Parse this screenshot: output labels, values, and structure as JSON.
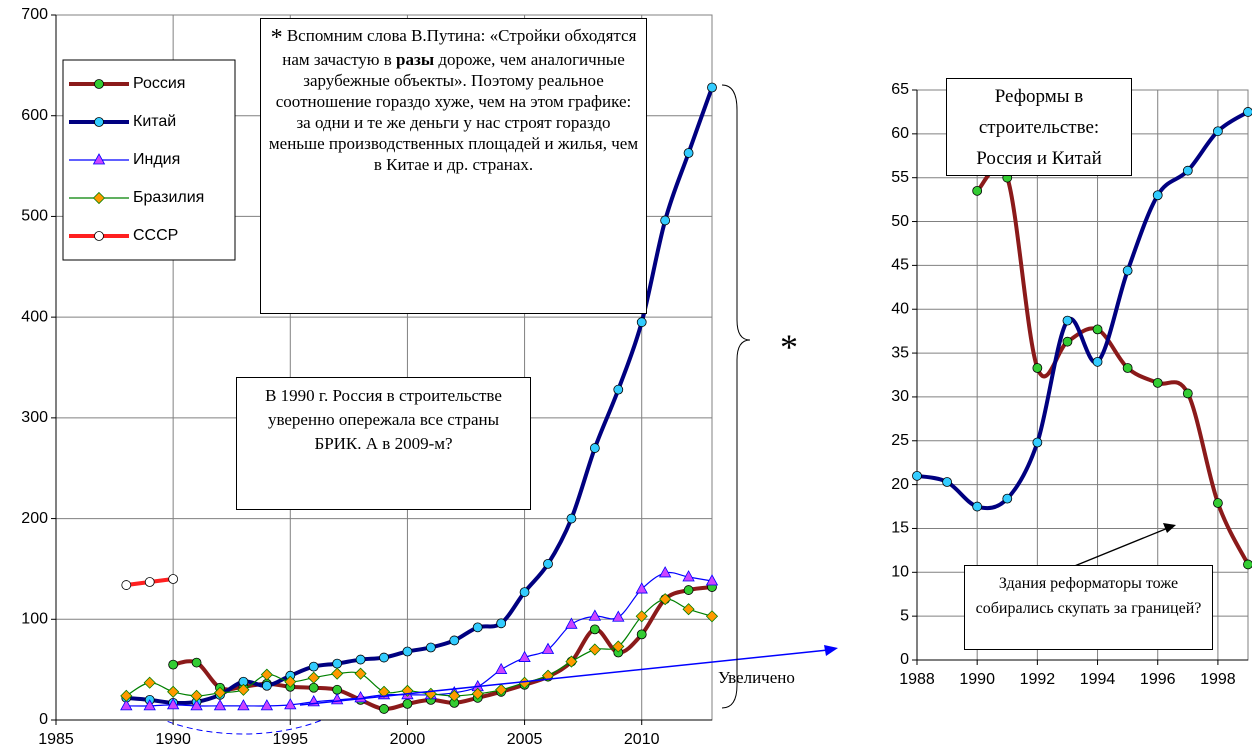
{
  "chart_data": [
    {
      "type": "line",
      "x": [
        1988,
        1989,
        1990,
        1991,
        1992,
        1993,
        1994,
        1995,
        1996,
        1997,
        1998,
        1999,
        2000,
        2001,
        2002,
        2003,
        2004,
        2005,
        2006,
        2007,
        2008,
        2009,
        2010,
        2011,
        2012,
        2013
      ],
      "series": [
        {
          "name": "Россия",
          "color": "#8b1a1a",
          "marker": "circle",
          "marker_color": "#33cc33",
          "width": 4,
          "values": [
            null,
            null,
            55,
            57,
            32,
            33,
            36,
            33,
            32,
            30,
            20,
            11,
            16,
            20,
            17,
            22,
            28,
            35,
            43,
            58,
            90,
            67,
            85,
            120,
            129,
            132
          ]
        },
        {
          "name": "Китай",
          "color": "#000080",
          "marker": "circle",
          "marker_color": "#33ccff",
          "width": 4,
          "values": [
            22,
            20,
            17,
            18,
            25,
            38,
            34,
            44,
            53,
            56,
            60,
            62,
            68,
            72,
            79,
            92,
            96,
            127,
            155,
            200,
            270,
            328,
            395,
            496,
            563,
            628
          ]
        },
        {
          "name": "Индия",
          "color": "#0000ff",
          "marker": "triangle",
          "marker_color": "#cc44ff",
          "width": 1.2,
          "values": [
            14,
            14,
            15,
            14,
            14,
            14,
            14,
            15,
            18,
            20,
            22,
            25,
            25,
            25,
            27,
            33,
            50,
            62,
            70,
            95,
            103,
            102,
            130,
            146,
            142,
            138
          ]
        },
        {
          "name": "Бразилия",
          "color": "#008000",
          "marker": "diamond",
          "marker_color": "#ff9900",
          "width": 1.2,
          "values": [
            24,
            37,
            28,
            24,
            27,
            30,
            45,
            38,
            42,
            46,
            46,
            28,
            29,
            26,
            24,
            26,
            30,
            37,
            44,
            58,
            70,
            73,
            103,
            120,
            110,
            103
          ]
        },
        {
          "name": "СССР",
          "color": "#ff2020",
          "marker": "circle",
          "marker_color": "#ffffff",
          "width": 4,
          "values": [
            134,
            137,
            140,
            null,
            null,
            null,
            null,
            null,
            null,
            null,
            null,
            null,
            null,
            null,
            null,
            null,
            null,
            null,
            null,
            null,
            null,
            null,
            null,
            null,
            null,
            null
          ]
        }
      ],
      "xlim": [
        1985,
        2013
      ],
      "xticks": [
        1985,
        1990,
        1995,
        2000,
        2005,
        2010
      ],
      "ylim": [
        0,
        700
      ],
      "yticks": [
        0,
        100,
        200,
        300,
        400,
        500,
        600,
        700
      ],
      "grid": true,
      "legend": "upper left",
      "annotations": {
        "quote": {
          "star": "*",
          "parts": [
            "Вспомним слова В.Путина: «Стройки обходятся нам зачастую в ",
            "разы",
            " дороже, чем аналогичные зарубежные объекты». Поэтому реальное соотношение гораздо хуже, чем на этом графике:  за одни и те же деньги у нас строят гораздо меньше производственных площадей и жилья, чем в Китае и др. странах."
          ]
        },
        "note": "В 1990 г.  Россия в строительстве  уверенно опережала все страны БРИК. А в 2009-м?",
        "zoom": "Увеличено",
        "brace_star": "*"
      }
    },
    {
      "type": "line",
      "title": "Реформы в строительстве: Россия и Китай",
      "x": [
        1988,
        1989,
        1990,
        1991,
        1992,
        1993,
        1994,
        1995,
        1996,
        1997,
        1998,
        1999
      ],
      "series": [
        {
          "color": "#8b1a1a",
          "marker": "circle",
          "marker_color": "#33cc33",
          "width": 4,
          "values": [
            null,
            null,
            53.5,
            55,
            33.3,
            36.3,
            37.7,
            33.3,
            31.6,
            30.4,
            17.9,
            10.9
          ]
        },
        {
          "color": "#000080",
          "marker": "circle",
          "marker_color": "#33ccff",
          "width": 4,
          "values": [
            21,
            20.3,
            17.5,
            18.4,
            24.8,
            38.7,
            34,
            44.4,
            53,
            55.8,
            60.3,
            62.5
          ]
        }
      ],
      "xlim": [
        1988,
        1999
      ],
      "xticks": [
        1988,
        1990,
        1992,
        1994,
        1996,
        1998
      ],
      "ylim": [
        0,
        65
      ],
      "yticks": [
        0,
        5,
        10,
        15,
        20,
        25,
        30,
        35,
        40,
        45,
        50,
        55,
        60,
        65
      ],
      "grid": true,
      "annotations": {
        "note": "Здания реформаторы тоже собирались скупать за границей?"
      }
    }
  ]
}
